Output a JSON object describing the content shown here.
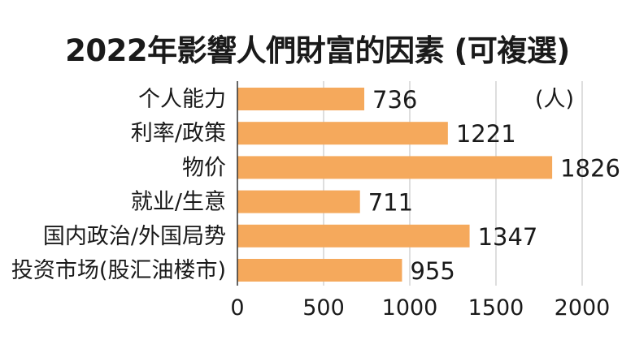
{
  "chart_data": {
    "type": "bar",
    "orientation": "horizontal",
    "title": "2022年影響人們財富的因素 (可複選)",
    "unit": "(人)",
    "categories": [
      "个人能力",
      "利率/政策",
      "物价",
      "就业/生意",
      "国内政治/外国局势",
      "投资市场(股汇油楼市)"
    ],
    "values": [
      736,
      1221,
      1826,
      711,
      1347,
      955
    ],
    "xlim": [
      0,
      2000
    ],
    "xticks": [
      0,
      500,
      1000,
      1500,
      2000
    ],
    "grid": "vertical",
    "colors": {
      "bar": "#F5A95C",
      "grid": "#BDBDBD",
      "axis": "#333333"
    }
  }
}
